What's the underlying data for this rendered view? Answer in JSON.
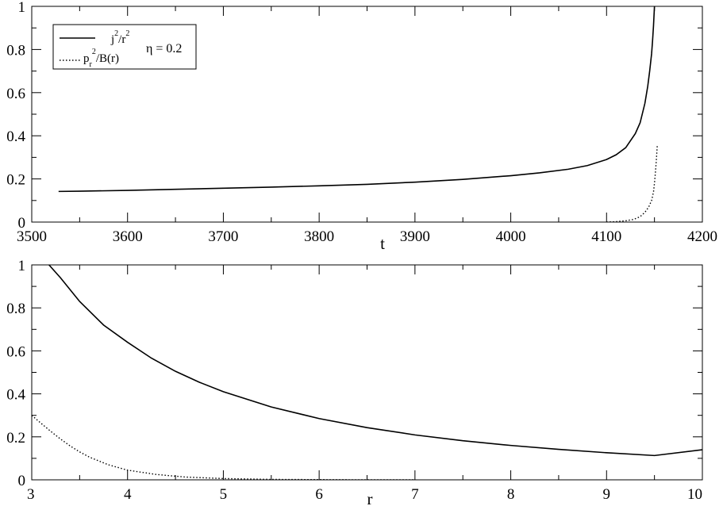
{
  "chart_data": [
    {
      "type": "line",
      "xlabel": "t",
      "ylabel": "",
      "xlim": [
        3500,
        4200
      ],
      "ylim": [
        0,
        1
      ],
      "xticks": [
        3500,
        3600,
        3700,
        3800,
        3900,
        4000,
        4100,
        4200
      ],
      "yticks": [
        0,
        0.2,
        0.4,
        0.6,
        0.8,
        1
      ],
      "xtick_labels": [
        "3500",
        "3600",
        "3700",
        "3800",
        "3900",
        "4000",
        "4100",
        "4200"
      ],
      "ytick_labels": [
        "0",
        "0.2",
        "0.4",
        "0.6",
        "0.8",
        "1"
      ],
      "grid": false,
      "legend": {
        "placement": "top-left",
        "entries": [
          {
            "series": "j2r2",
            "style": "solid",
            "base": "j",
            "sup1": "2",
            "mid": "/r",
            "sup2": "2"
          },
          {
            "series": "pr2B",
            "style": "dotted",
            "base": "p",
            "sub": "r",
            "sup": "2",
            "rest": "/B(r)"
          }
        ]
      },
      "annotation": "η = 0.2",
      "series": [
        {
          "id": "j2r2",
          "style": "solid",
          "x": [
            3528,
            3550,
            3600,
            3650,
            3700,
            3750,
            3800,
            3850,
            3900,
            3950,
            4000,
            4030,
            4060,
            4080,
            4100,
            4110,
            4120,
            4130,
            4135,
            4140,
            4143,
            4145,
            4147,
            4148,
            4149,
            4150
          ],
          "y": [
            0.142,
            0.143,
            0.147,
            0.152,
            0.157,
            0.162,
            0.168,
            0.175,
            0.185,
            0.198,
            0.215,
            0.228,
            0.245,
            0.262,
            0.29,
            0.312,
            0.345,
            0.41,
            0.46,
            0.55,
            0.63,
            0.7,
            0.78,
            0.84,
            0.91,
            1.0
          ]
        },
        {
          "id": "pr2B",
          "style": "dotted",
          "x": [
            4100,
            4110,
            4120,
            4128,
            4135,
            4140,
            4144,
            4147,
            4149,
            4150,
            4151,
            4152,
            4153
          ],
          "y": [
            0.0,
            0.002,
            0.006,
            0.012,
            0.025,
            0.045,
            0.07,
            0.1,
            0.14,
            0.18,
            0.23,
            0.29,
            0.36
          ]
        }
      ]
    },
    {
      "type": "line",
      "xlabel": "r",
      "ylabel": "",
      "xlim": [
        3,
        10
      ],
      "ylim": [
        0,
        1
      ],
      "xticks": [
        3,
        4,
        5,
        6,
        7,
        8,
        9,
        10
      ],
      "yticks": [
        0,
        0.2,
        0.4,
        0.6,
        0.8,
        1
      ],
      "xtick_labels": [
        "3",
        "4",
        "5",
        "6",
        "7",
        "8",
        "9",
        "10"
      ],
      "ytick_labels": [
        "0",
        "0.2",
        "0.4",
        "0.6",
        "0.8",
        "1"
      ],
      "grid": false,
      "series": [
        {
          "id": "j2r2",
          "style": "solid",
          "x": [
            3.18,
            3.3,
            3.5,
            3.75,
            4,
            4.25,
            4.5,
            4.75,
            5,
            5.5,
            6,
            6.5,
            7,
            7.5,
            8,
            8.5,
            9,
            9.5,
            10
          ],
          "y": [
            1.0,
            0.94,
            0.83,
            0.72,
            0.64,
            0.566,
            0.505,
            0.454,
            0.41,
            0.339,
            0.285,
            0.243,
            0.209,
            0.182,
            0.16,
            0.142,
            0.126,
            0.113,
            0.14
          ]
        },
        {
          "id": "pr2B",
          "style": "dotted",
          "x": [
            3.0,
            3.1,
            3.2,
            3.3,
            3.4,
            3.5,
            3.6,
            3.8,
            4.0,
            4.3,
            4.6,
            5.0,
            5.5,
            6.0,
            6.5,
            7.0
          ],
          "y": [
            0.3,
            0.262,
            0.225,
            0.19,
            0.158,
            0.13,
            0.106,
            0.07,
            0.045,
            0.025,
            0.013,
            0.006,
            0.002,
            0.001,
            0.0,
            0.0
          ]
        }
      ]
    }
  ]
}
